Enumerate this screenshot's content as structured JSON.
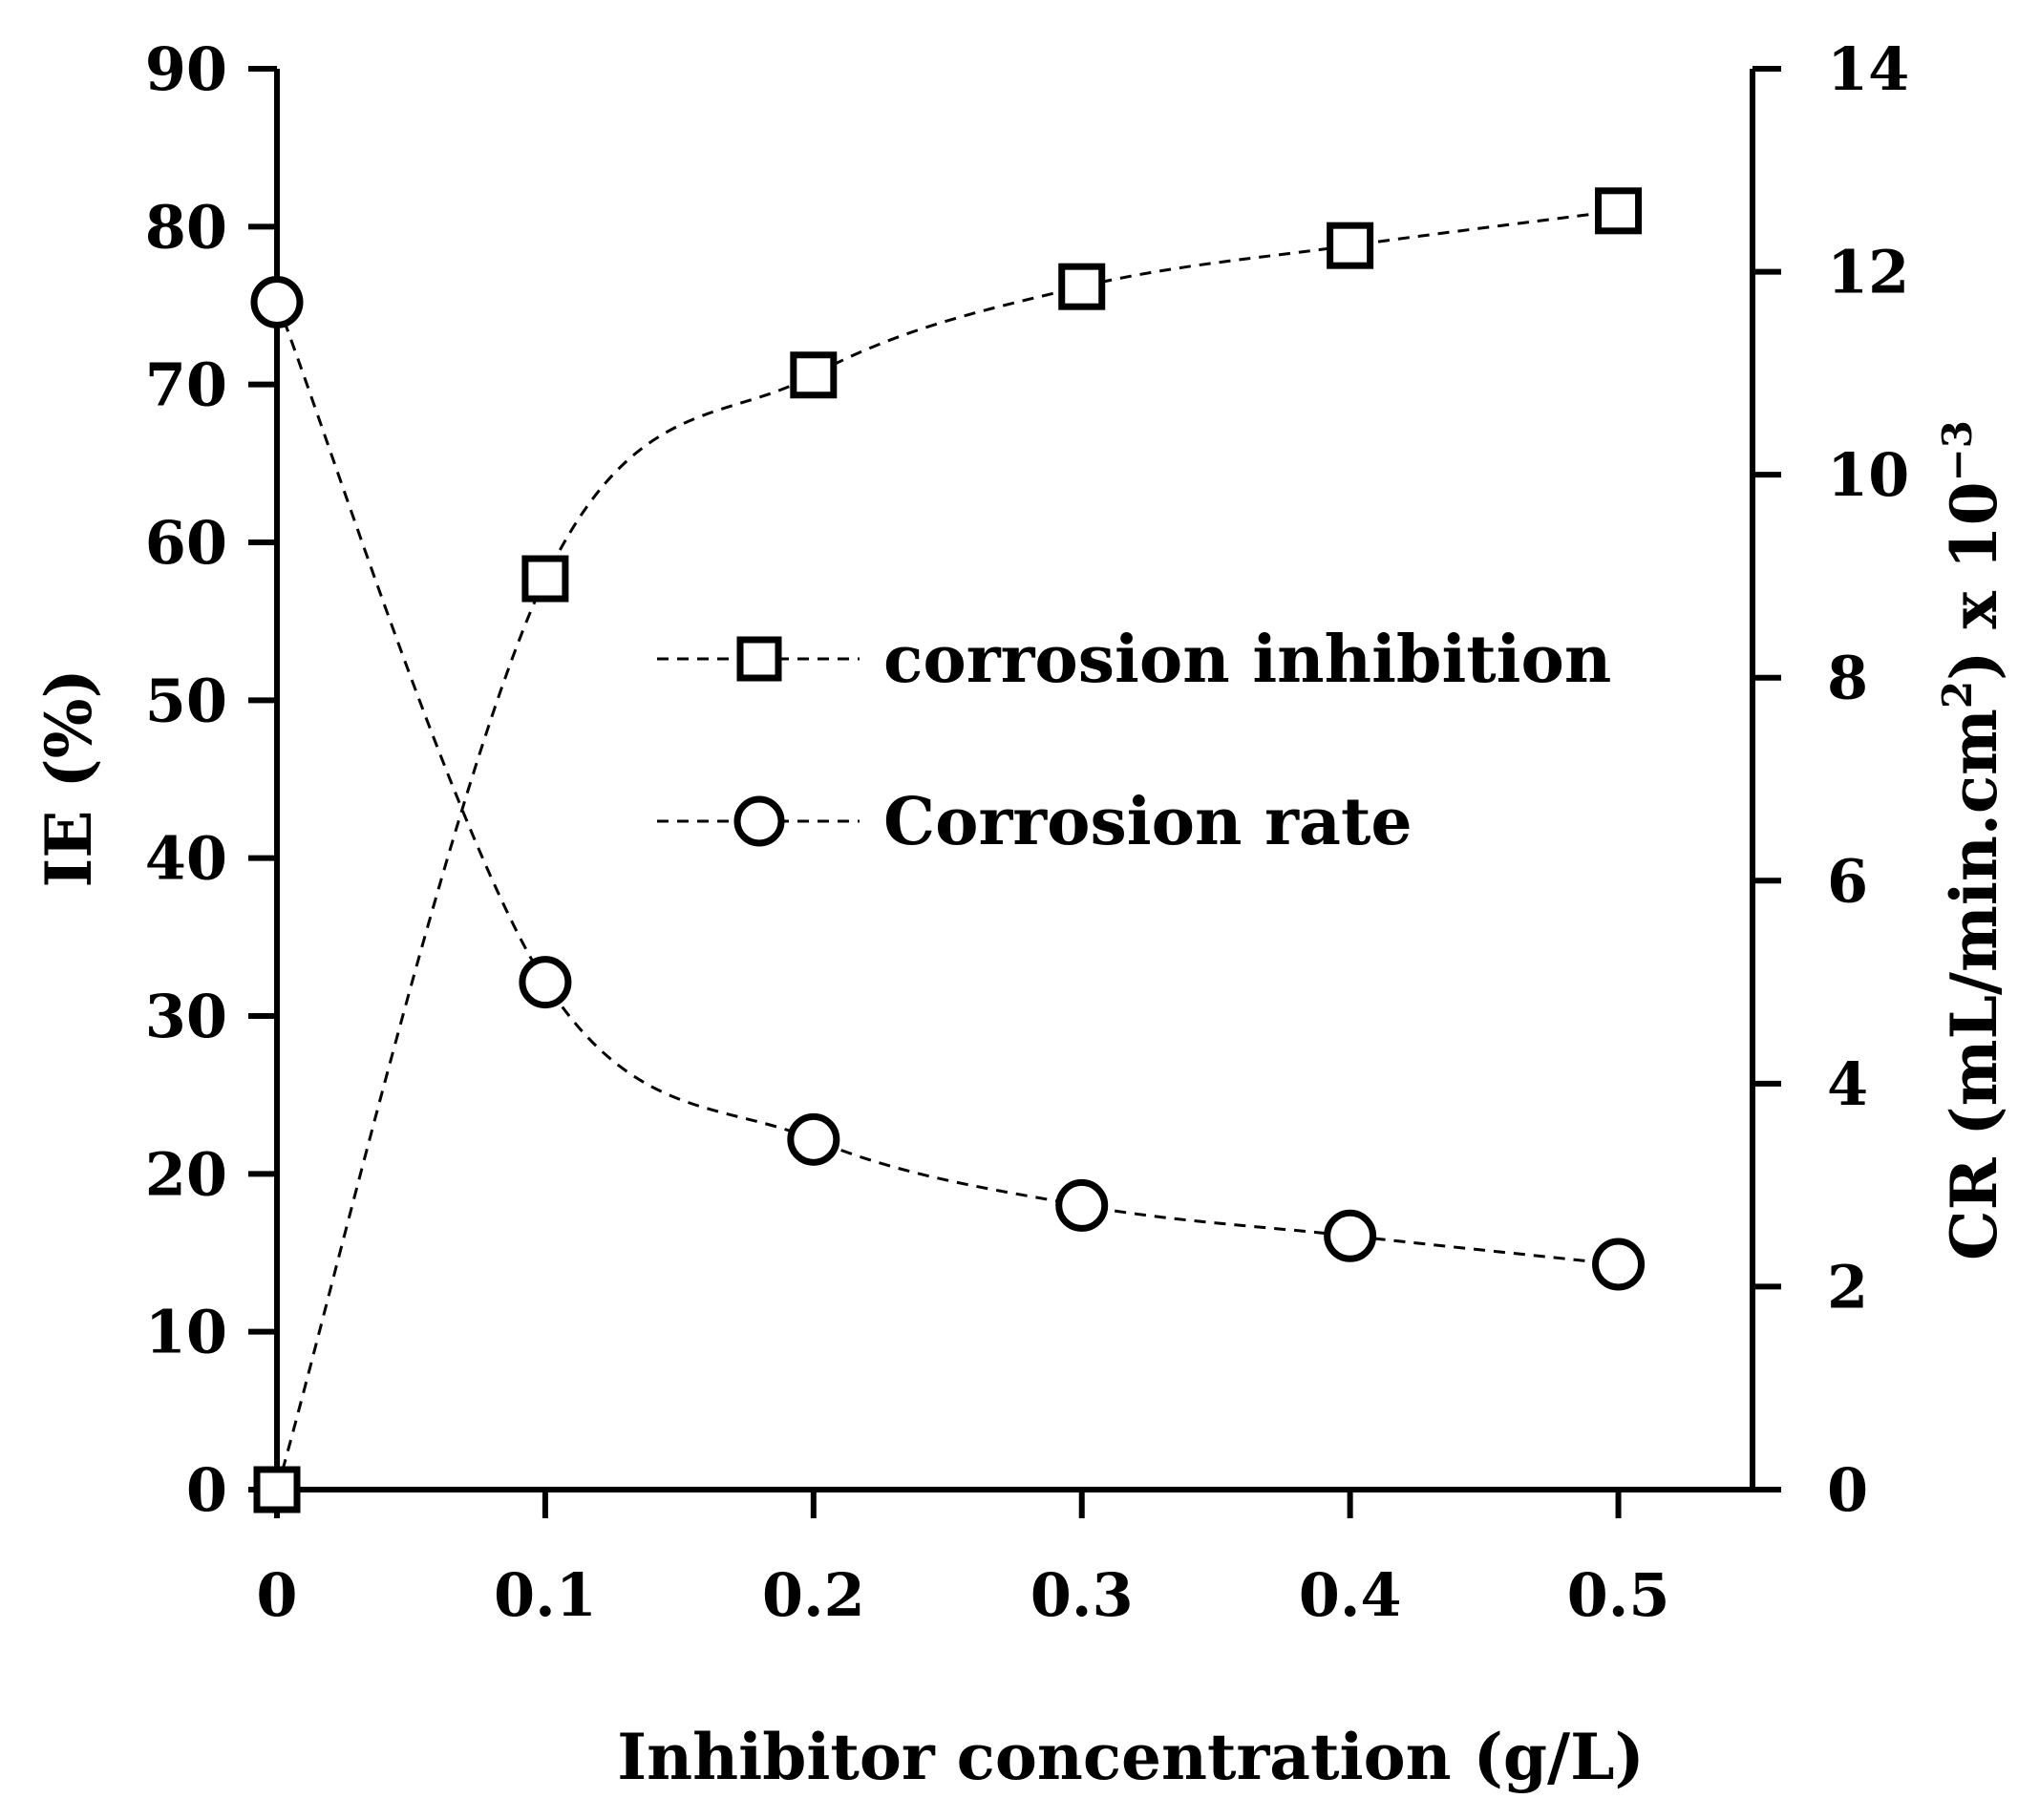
{
  "chart_data": {
    "type": "line",
    "x": [
      0,
      0.1,
      0.2,
      0.3,
      0.4,
      0.5
    ],
    "x_tick_labels": [
      "0",
      "0.1",
      "0.2",
      "0.3",
      "0.4",
      "0.5"
    ],
    "xlim": [
      0,
      0.55
    ],
    "xlabel": "Inhibitor concentration (g/L)",
    "ylabel_left": "IE (%)",
    "ylim_left": [
      0,
      90
    ],
    "yticks_left": [
      "0",
      "10",
      "20",
      "30",
      "40",
      "50",
      "60",
      "70",
      "80",
      "90"
    ],
    "ylabel_right_main": "CR (mL/min.cm",
    "ylabel_right_sup": "2",
    "ylabel_right_tail": ") x 10",
    "ylabel_right_exp": "−3",
    "ylim_right": [
      0,
      14
    ],
    "yticks_right": [
      "0",
      "2",
      "4",
      "6",
      "8",
      "10",
      "12",
      "14"
    ],
    "series": [
      {
        "name": "corrosion inhibition",
        "axis": "left",
        "marker": "square",
        "line_style": "dashed",
        "values": [
          0,
          57.7,
          70.6,
          76.2,
          78.8,
          81.0
        ]
      },
      {
        "name": "Corrosion rate",
        "axis": "right",
        "marker": "circle",
        "line_style": "dashed",
        "values": [
          11.7,
          5.0,
          3.45,
          2.8,
          2.5,
          2.22
        ]
      }
    ],
    "legend_position": "center-right",
    "grid": false
  }
}
